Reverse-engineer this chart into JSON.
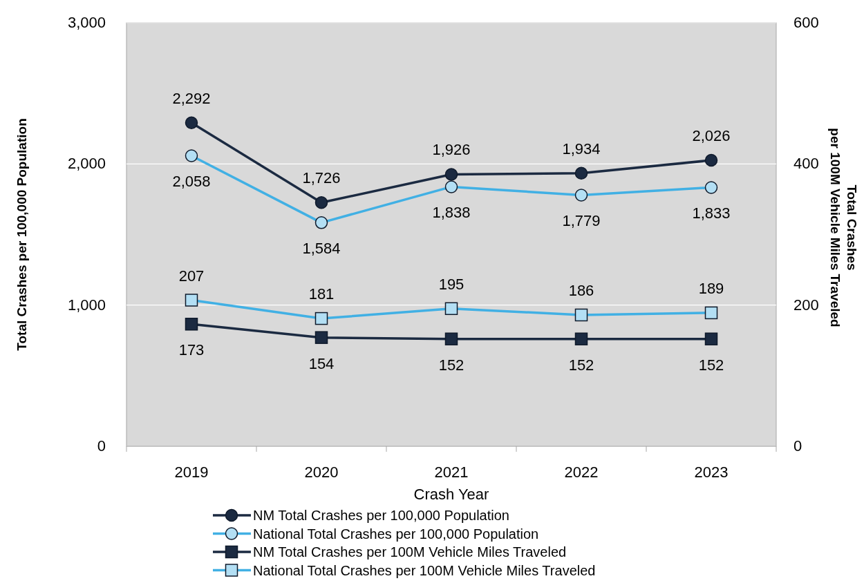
{
  "chart_data": {
    "type": "line",
    "xlabel": "Crash Year",
    "ylabel": "Total Crashes per 100,000 Population",
    "y2label": "Total Crashes\nper 100M Vehicle Miles Traveled",
    "categories": [
      "2019",
      "2020",
      "2021",
      "2022",
      "2023"
    ],
    "series": [
      {
        "name": "NM Total Crashes per 100,000 Population",
        "color": "#1b2a41",
        "marker": "circle",
        "values": [
          2292,
          1726,
          1926,
          1934,
          2026
        ],
        "value_labels": [
          "2,292",
          "1,726",
          "1,926",
          "1,934",
          "2,026"
        ]
      },
      {
        "name": "National Total Crashes per 100,000 Population",
        "color": "#41b0e4",
        "marker": "circle",
        "values": [
          2058,
          1584,
          1838,
          1779,
          1833
        ],
        "value_labels": [
          "2,058",
          "1,584",
          "1,838",
          "1,779",
          "1,833"
        ]
      },
      {
        "name": "NM Total Crashes per 100M Vehicle Miles Traveled",
        "color": "#1b2a41",
        "marker": "square",
        "axis": "y2",
        "values": [
          173,
          154,
          152,
          152,
          152
        ]
      },
      {
        "name": "National Total Crashes per 100M Vehicle Miles Traveled",
        "color": "#41b0e4",
        "marker": "square",
        "axis": "y2",
        "values": [
          207,
          181,
          195,
          186,
          189
        ]
      }
    ],
    "ylim": [
      0,
      3000
    ],
    "yticks": [
      {
        "value": 0,
        "label": "0"
      },
      {
        "value": 1000,
        "label": "1,000"
      },
      {
        "value": 2000,
        "label": "2,000"
      },
      {
        "value": 3000,
        "label": "3,000"
      }
    ],
    "y2lim": [
      0,
      600
    ],
    "y2ticks": [
      0,
      200,
      400,
      600
    ],
    "grid": "y",
    "legend": "bottom",
    "data_labels": true
  }
}
